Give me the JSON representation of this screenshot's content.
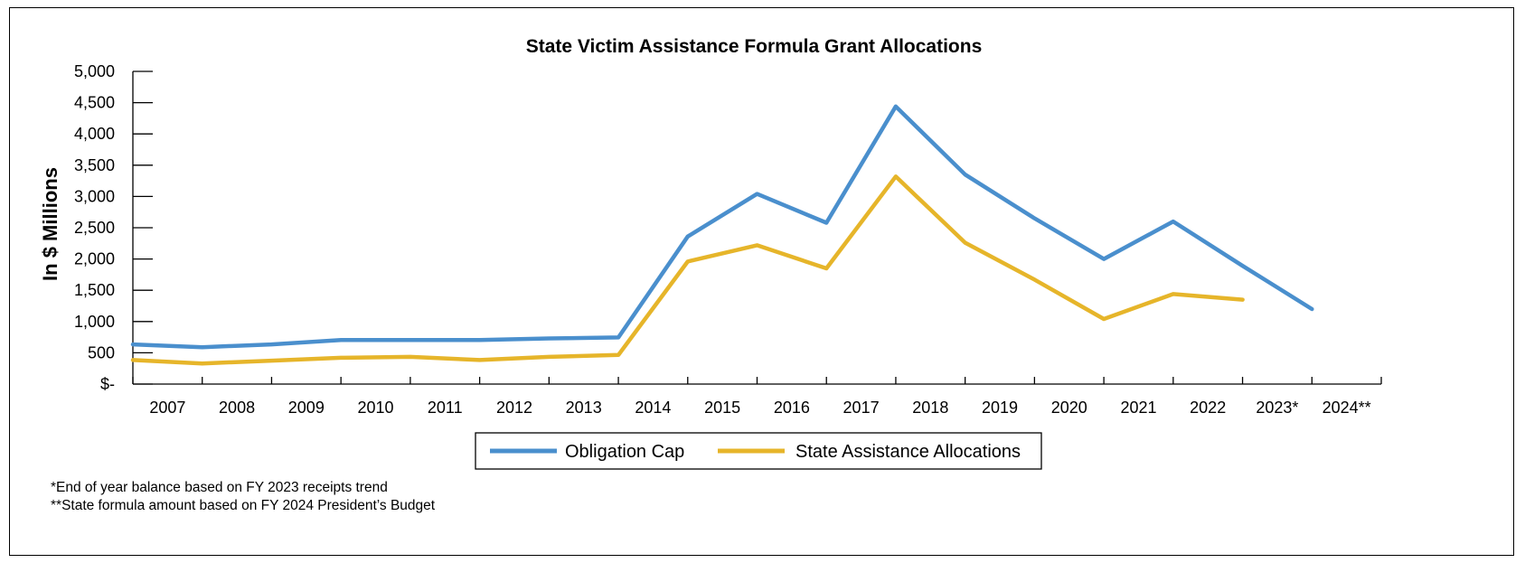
{
  "chart_data": {
    "type": "line",
    "title": "State Victim Assistance Formula Grant Allocations",
    "ylabel": "In $ Millions",
    "xlabel": "",
    "categories": [
      "2007",
      "2008",
      "2009",
      "2010",
      "2011",
      "2012",
      "2013",
      "2014",
      "2015",
      "2016",
      "2017",
      "2018",
      "2019",
      "2020",
      "2021",
      "2022",
      "2023*",
      "2024**"
    ],
    "y_ticks": [
      "$-",
      "500",
      "1,000",
      "1,500",
      "2,000",
      "2,500",
      "3,000",
      "3,500",
      "4,000",
      "4,500",
      "5,000"
    ],
    "ylim": [
      0,
      5000
    ],
    "grid": false,
    "legend_position": "bottom",
    "series": [
      {
        "name": "Obligation Cap",
        "color": "#4a8fcd",
        "values": [
          635,
          590,
          635,
          705,
          705,
          705,
          730,
          745,
          2360,
          3040,
          2580,
          4440,
          3350,
          2650,
          2000,
          2600,
          1890,
          1200
        ]
      },
      {
        "name": "State Assistance Allocations",
        "color": "#e6b52a",
        "values": [
          385,
          330,
          375,
          420,
          435,
          385,
          435,
          465,
          1960,
          2220,
          1850,
          3320,
          2260,
          1670,
          1040,
          1440,
          1350,
          null
        ]
      }
    ]
  },
  "notes": [
    "*End of year balance based on FY 2023 receipts trend",
    "**State formula amount based on FY 2024 President’s Budget"
  ]
}
